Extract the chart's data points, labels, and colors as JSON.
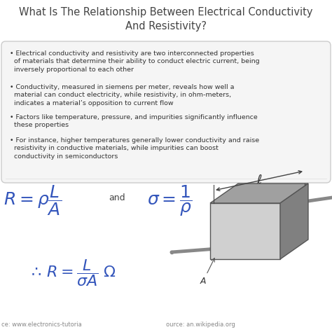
{
  "title_line1": "What Is The Relationship Between Electrical Conductivity",
  "title_line2": "And Resistivity?",
  "title_fontsize": 10.5,
  "title_color": "#444444",
  "bg_color": "#ffffff",
  "bullet_fontsize": 6.8,
  "bullet_color": "#333333",
  "formula_color": "#3355bb",
  "source_color": "#888888",
  "source_fontsize": 6.0,
  "source_text1": "ce: www.electronics-tutoria",
  "source_text2": "ource: an.wikipedia.org"
}
